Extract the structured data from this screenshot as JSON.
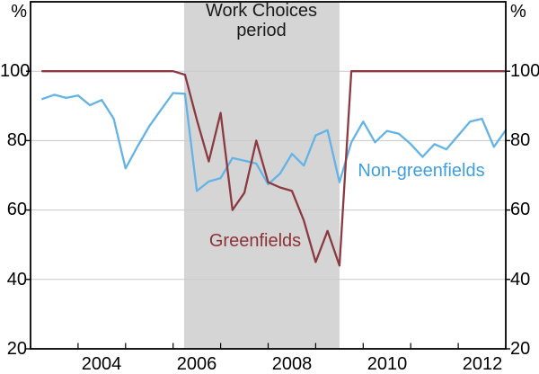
{
  "chart_data": {
    "type": "line",
    "title": "",
    "unit": "%",
    "xlim": [
      2003,
      2013
    ],
    "ylim": [
      20,
      120
    ],
    "yticks": [
      20,
      40,
      60,
      80,
      100
    ],
    "xticks": [
      2004,
      2005,
      2006,
      2007,
      2008,
      2009,
      2010,
      2011,
      2012
    ],
    "x": [
      2003.25,
      2003.5,
      2003.75,
      2004,
      2004.25,
      2004.5,
      2004.75,
      2005,
      2005.25,
      2005.5,
      2005.75,
      2006,
      2006.25,
      2006.5,
      2006.75,
      2007,
      2007.25,
      2007.5,
      2007.75,
      2008,
      2008.25,
      2008.5,
      2008.75,
      2009,
      2009.25,
      2009.5,
      2009.75,
      2010,
      2010.25,
      2010.5,
      2010.75,
      2011,
      2011.25,
      2011.5,
      2011.75,
      2012,
      2012.25,
      2012.5,
      2012.75,
      2013
    ],
    "series": [
      {
        "name": "Non-greenfields",
        "color": "#63b3e6",
        "values": [
          92,
          93.2,
          92.3,
          93,
          90.2,
          91.7,
          86.3,
          72,
          78.3,
          84.2,
          89,
          93.7,
          93.5,
          65.5,
          68.2,
          69.2,
          75,
          74.2,
          73.4,
          67.4,
          70.5,
          76.2,
          72.8,
          81.5,
          83,
          68,
          79.5,
          85.5,
          79.5,
          82.8,
          82,
          79,
          75.3,
          79,
          77.5,
          81.5,
          85.5,
          86.3,
          78.2,
          83
        ]
      },
      {
        "name": "Greenfields",
        "color": "#8b3a42",
        "values": [
          100,
          100,
          100,
          100,
          100,
          100,
          100,
          100,
          100,
          100,
          100,
          100,
          99,
          86,
          74,
          88,
          60,
          65,
          80,
          68,
          66.5,
          65.5,
          57,
          45,
          54,
          44,
          100,
          100,
          100,
          100,
          100,
          100,
          100,
          100,
          100,
          100,
          100,
          100,
          100,
          100
        ]
      }
    ],
    "shaded_region": {
      "from": 2006.23,
      "to": 2009.5,
      "color": "#d5d5d5",
      "label_line1": "Work Choices",
      "label_line2": "period"
    },
    "grid": "horizontal",
    "style": {
      "grid_color": "#c9c9c9",
      "frame_color": "#000000",
      "background": "#ffffff"
    },
    "y_axis": {
      "unit": "%",
      "labels": [
        "100",
        "80",
        "60",
        "40",
        "20"
      ]
    },
    "x_axis": {
      "labels": [
        "2004",
        "2006",
        "2008",
        "2010",
        "2012"
      ]
    },
    "annotations": {
      "work_choices": {
        "line1": "Work Choices",
        "line2": "period",
        "color": "#1a1a1a"
      },
      "greenfields_label": {
        "text": "Greenfields",
        "color": "#8b3338"
      },
      "non_greenfields_label": {
        "text": "Non-greenfields",
        "color": "#3f9fdd"
      }
    }
  }
}
